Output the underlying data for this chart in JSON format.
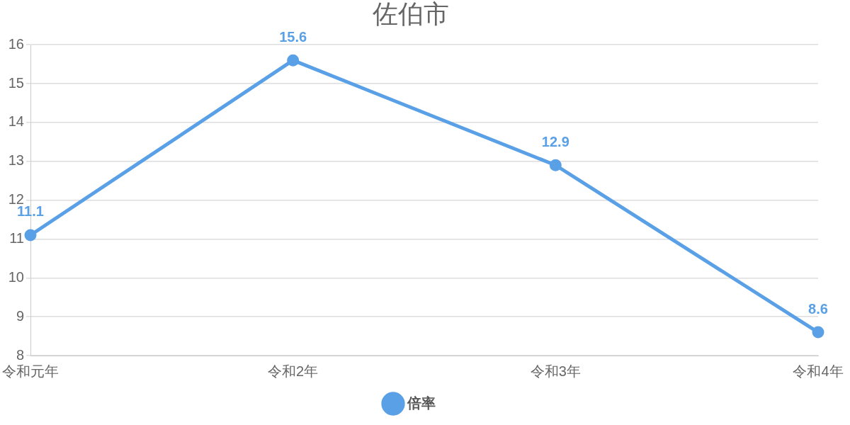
{
  "chart_data": {
    "type": "line",
    "title": "佐伯市",
    "categories": [
      "令和元年",
      "令和2年",
      "令和3年",
      "令和4年"
    ],
    "series": [
      {
        "name": "倍率",
        "color": "#5aa0e6",
        "values": [
          11.1,
          15.6,
          12.9,
          8.6
        ]
      }
    ],
    "ylim": [
      8,
      16
    ],
    "yticks": [
      8,
      9,
      10,
      11,
      12,
      13,
      14,
      15,
      16
    ],
    "grid": "y",
    "legend": "bottom",
    "marker": "circle",
    "line_style": "solid",
    "data_labels": true
  }
}
